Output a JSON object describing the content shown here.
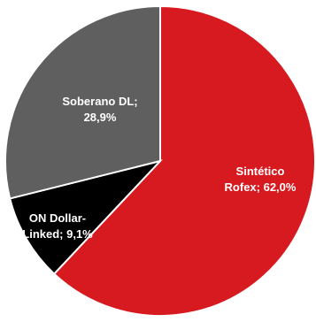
{
  "chart_data": {
    "type": "pie",
    "title": "",
    "slices": [
      {
        "name": "Sintético Rofex",
        "value": 62.0,
        "label_lines": [
          "Sintético",
          "Rofex; 62,0%"
        ],
        "color": "#d71920"
      },
      {
        "name": "ON Dollar-Linked",
        "value": 9.1,
        "label_lines": [
          "ON Dollar-",
          "Linked; 9,1%"
        ],
        "color": "#000000"
      },
      {
        "name": "Soberano DL",
        "value": 28.9,
        "label_lines": [
          "Soberano DL;",
          "28,9%"
        ],
        "color": "#5f5f5f"
      }
    ],
    "start_angle_deg": 0,
    "direction": "clockwise",
    "legend": "none",
    "slice_border_color": "#ffffff"
  }
}
